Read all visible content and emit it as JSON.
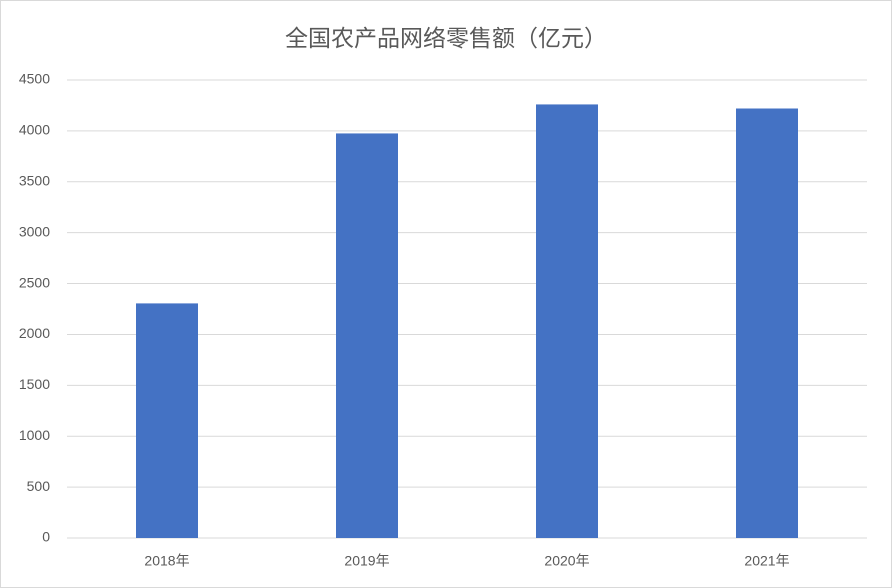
{
  "chart_data": {
    "type": "bar",
    "title": "全国农产品网络零售额（亿元）",
    "categories": [
      "2018年",
      "2019年",
      "2020年",
      "2021年"
    ],
    "values": [
      2305,
      3975,
      4260,
      4220
    ],
    "color": "#4472c4",
    "ylim": [
      0,
      4500
    ],
    "yticks": [
      0,
      500,
      1000,
      1500,
      2000,
      2500,
      3000,
      3500,
      4000,
      4500
    ],
    "grid": true
  }
}
